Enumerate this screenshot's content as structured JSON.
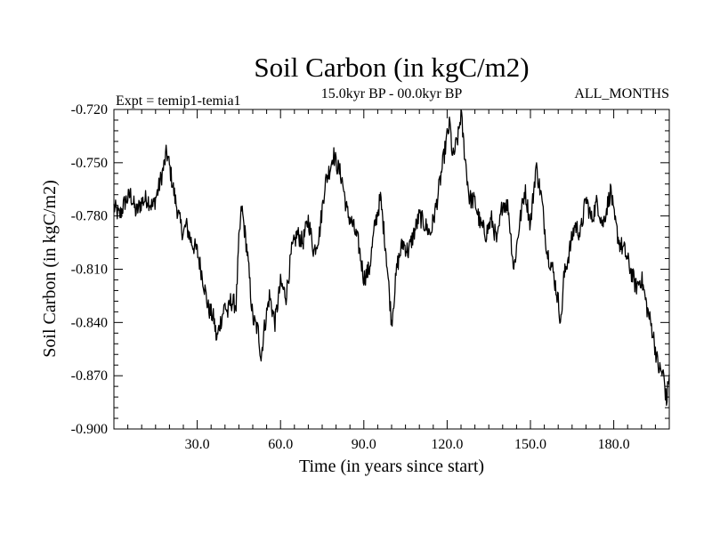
{
  "chart_data": {
    "type": "line",
    "title": "Soil Carbon (in kgC/m2)",
    "subtitle": "15.0kyr BP - 00.0kyr BP",
    "experiment_label": "Expt = temip1-temia1",
    "period_label": "ALL_MONTHS",
    "xlabel": "Time (in years since start)",
    "ylabel": "Soil Carbon (in kgC/m2)",
    "xlim": [
      0,
      200
    ],
    "ylim": [
      -0.9,
      -0.72
    ],
    "xticks": [
      30,
      60,
      90,
      120,
      150,
      180
    ],
    "xtick_labels": [
      "30.0",
      "60.0",
      "90.0",
      "120.0",
      "150.0",
      "180.0"
    ],
    "yticks": [
      -0.9,
      -0.87,
      -0.84,
      -0.81,
      -0.78,
      -0.75,
      -0.72
    ],
    "ytick_labels": [
      "-0.900",
      "-0.870",
      "-0.840",
      "-0.810",
      "-0.780",
      "-0.750",
      "-0.720"
    ],
    "grid": false,
    "series": [
      {
        "name": "Soil Carbon",
        "color": "#000000",
        "x": [
          0,
          2,
          4,
          6,
          8,
          10,
          12,
          14,
          16,
          18,
          19,
          20,
          22,
          24,
          25,
          26,
          28,
          30,
          32,
          34,
          36,
          37,
          38,
          40,
          41,
          42,
          44,
          45,
          46,
          48,
          50,
          52,
          53,
          54,
          56,
          58,
          60,
          62,
          64,
          66,
          68,
          70,
          72,
          74,
          76,
          78,
          79,
          80,
          82,
          84,
          86,
          88,
          90,
          92,
          94,
          96,
          98,
          100,
          102,
          104,
          106,
          108,
          110,
          112,
          114,
          116,
          118,
          120,
          121,
          122,
          124,
          125,
          126,
          128,
          130,
          132,
          134,
          136,
          138,
          140,
          142,
          144,
          146,
          148,
          150,
          152,
          154,
          156,
          158,
          160,
          161,
          162,
          164,
          166,
          168,
          170,
          172,
          174,
          176,
          178,
          179,
          180,
          182,
          184,
          186,
          188,
          190,
          192,
          194,
          196,
          198,
          199,
          200
        ],
        "values": [
          -0.775,
          -0.78,
          -0.772,
          -0.768,
          -0.778,
          -0.772,
          -0.77,
          -0.775,
          -0.765,
          -0.752,
          -0.744,
          -0.752,
          -0.77,
          -0.785,
          -0.79,
          -0.785,
          -0.795,
          -0.8,
          -0.815,
          -0.832,
          -0.838,
          -0.85,
          -0.842,
          -0.83,
          -0.835,
          -0.828,
          -0.83,
          -0.795,
          -0.775,
          -0.8,
          -0.838,
          -0.845,
          -0.86,
          -0.845,
          -0.825,
          -0.84,
          -0.818,
          -0.825,
          -0.8,
          -0.79,
          -0.795,
          -0.782,
          -0.8,
          -0.79,
          -0.762,
          -0.752,
          -0.745,
          -0.75,
          -0.758,
          -0.778,
          -0.785,
          -0.795,
          -0.815,
          -0.81,
          -0.785,
          -0.77,
          -0.8,
          -0.84,
          -0.808,
          -0.795,
          -0.8,
          -0.79,
          -0.78,
          -0.785,
          -0.79,
          -0.775,
          -0.755,
          -0.735,
          -0.728,
          -0.748,
          -0.735,
          -0.722,
          -0.74,
          -0.77,
          -0.772,
          -0.785,
          -0.79,
          -0.782,
          -0.795,
          -0.772,
          -0.775,
          -0.81,
          -0.785,
          -0.765,
          -0.785,
          -0.752,
          -0.77,
          -0.8,
          -0.81,
          -0.828,
          -0.84,
          -0.815,
          -0.8,
          -0.785,
          -0.79,
          -0.77,
          -0.782,
          -0.772,
          -0.785,
          -0.772,
          -0.765,
          -0.78,
          -0.795,
          -0.8,
          -0.81,
          -0.82,
          -0.815,
          -0.832,
          -0.845,
          -0.865,
          -0.87,
          -0.885,
          -0.868
        ]
      }
    ]
  }
}
